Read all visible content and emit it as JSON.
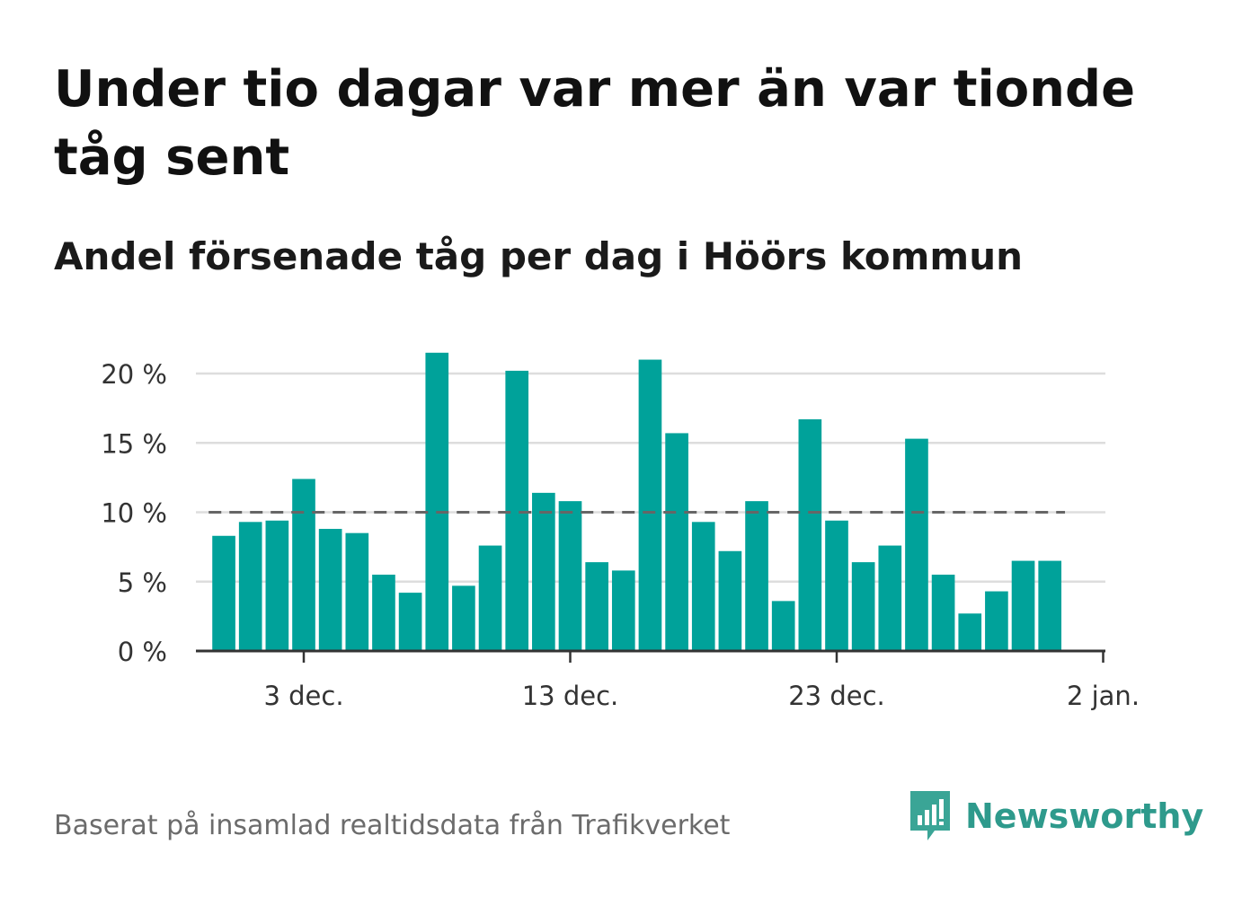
{
  "title": "Under tio dagar var mer än var tionde tåg sent",
  "subtitle": "Andel försenade tåg per dag i Höörs kommun",
  "footer": {
    "source": "Baserat på insamlad realtidsdata från Trafikverket"
  },
  "brand": {
    "name": "Newsworthy",
    "icon": "newsworthy-logo-icon",
    "color": "#2e9a8c"
  },
  "chart_data": {
    "type": "bar",
    "title": "Under tio dagar var mer än var tionde tåg sent",
    "subtitle": "Andel försenade tåg per dag i Höörs kommun",
    "xlabel": "",
    "ylabel": "",
    "x": [
      "2023-11-30",
      "2023-12-01",
      "2023-12-02",
      "2023-12-03",
      "2023-12-04",
      "2023-12-05",
      "2023-12-06",
      "2023-12-07",
      "2023-12-08",
      "2023-12-09",
      "2023-12-10",
      "2023-12-11",
      "2023-12-12",
      "2023-12-13",
      "2023-12-14",
      "2023-12-15",
      "2023-12-16",
      "2023-12-17",
      "2023-12-18",
      "2023-12-19",
      "2023-12-20",
      "2023-12-21",
      "2023-12-22",
      "2023-12-23",
      "2023-12-24",
      "2023-12-25",
      "2023-12-26",
      "2023-12-27",
      "2023-12-28",
      "2023-12-29",
      "2023-12-30",
      "2023-12-31"
    ],
    "values": [
      8.3,
      9.3,
      9.4,
      12.4,
      8.8,
      8.5,
      5.5,
      4.2,
      21.5,
      4.7,
      7.6,
      20.2,
      11.4,
      10.8,
      6.4,
      5.8,
      21.0,
      15.7,
      9.3,
      7.2,
      10.8,
      3.6,
      16.7,
      9.4,
      6.4,
      7.6,
      15.3,
      5.5,
      2.7,
      4.3,
      6.5,
      6.5
    ],
    "reference_line": {
      "value": 10,
      "style": "dashed",
      "color": "#666666"
    },
    "bar_color": "#00a29a",
    "ylim": [
      0,
      22
    ],
    "y_ticks": [
      {
        "value": 0,
        "label": "0 %"
      },
      {
        "value": 5,
        "label": "5 %"
      },
      {
        "value": 10,
        "label": "10 %"
      },
      {
        "value": 15,
        "label": "15 %"
      },
      {
        "value": 20,
        "label": "20 %"
      }
    ],
    "x_ticks": [
      {
        "value": "2023-12-03",
        "label": "3 dec."
      },
      {
        "value": "2023-12-13",
        "label": "13 dec."
      },
      {
        "value": "2023-12-23",
        "label": "23 dec."
      },
      {
        "value": "2024-01-02",
        "label": "2 jan."
      }
    ],
    "grid": true,
    "legend": "none"
  }
}
